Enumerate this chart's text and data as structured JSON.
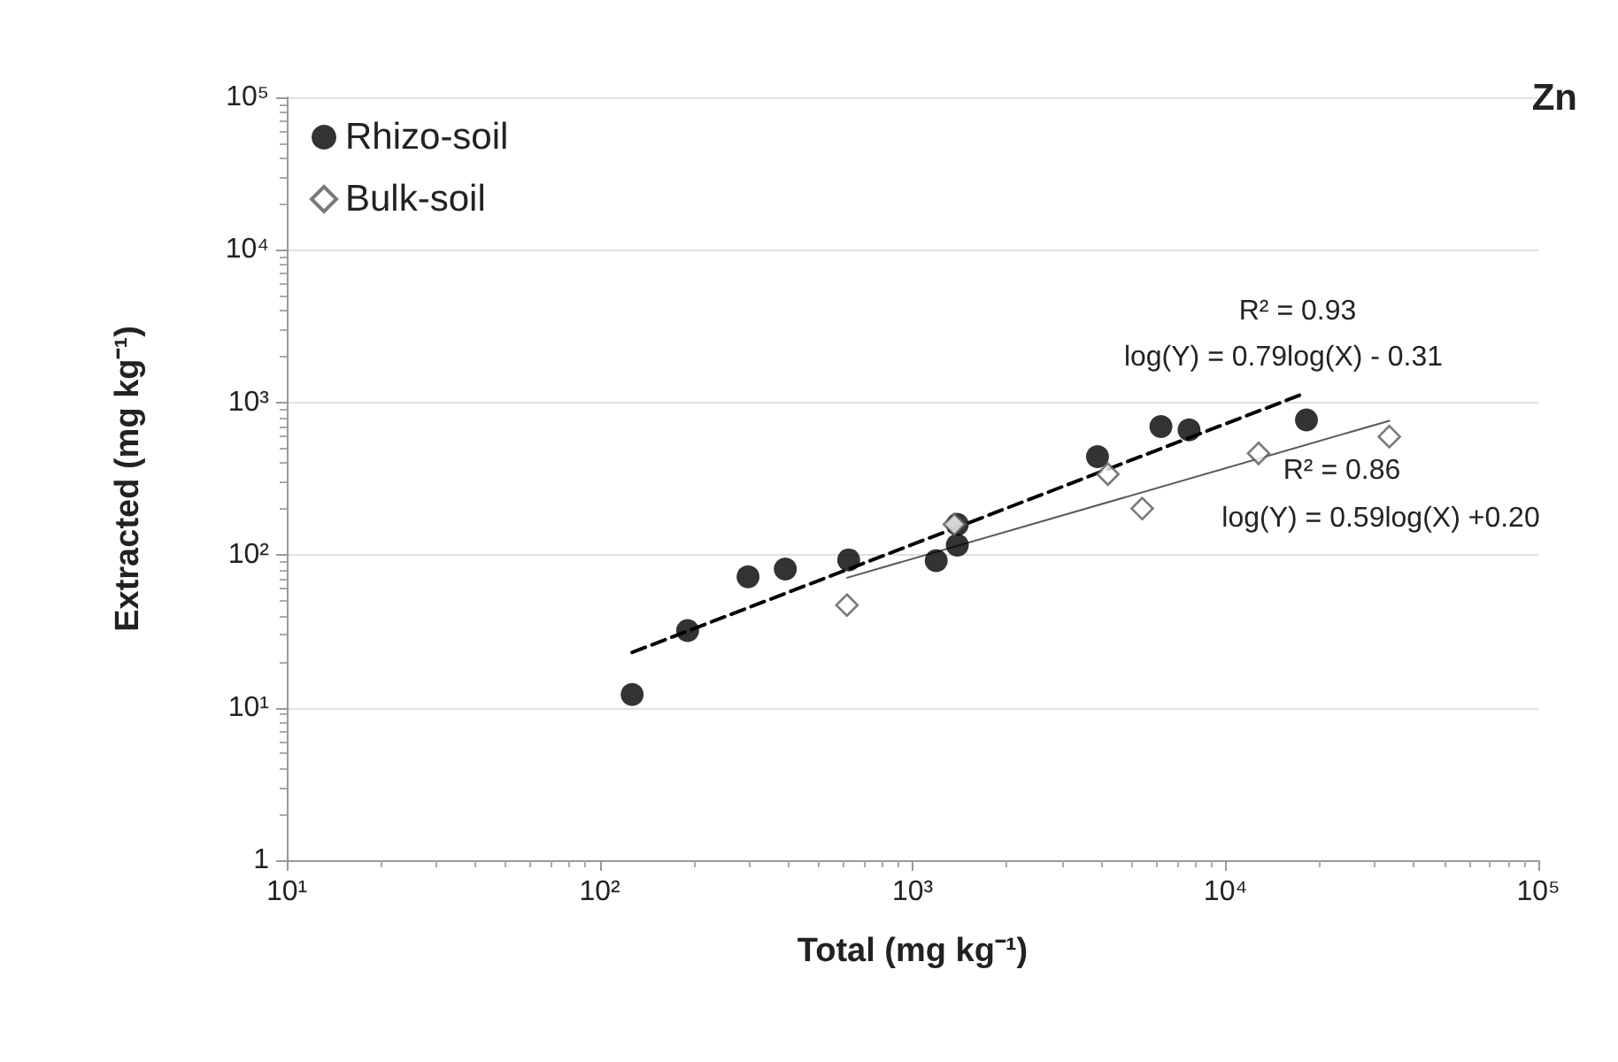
{
  "chart_data": {
    "type": "scatter",
    "title": "Zn",
    "xlabel": "Total (mg kg⁻¹)",
    "ylabel": "Extracted (mg kg⁻¹)",
    "log": "xy",
    "grid": "y",
    "legend": "top left",
    "xlim": [
      10,
      100000
    ],
    "ylim": [
      1,
      100000
    ],
    "xticks": [
      {
        "value": 10,
        "label": "10¹"
      },
      {
        "value": 100,
        "label": "10²"
      },
      {
        "value": 1000,
        "label": "10³"
      },
      {
        "value": 10000,
        "label": "10⁴"
      },
      {
        "value": 100000,
        "label": "10⁵"
      }
    ],
    "yticks": [
      1,
      {
        "value": 10,
        "label": "10¹"
      },
      {
        "value": 100,
        "label": "10²"
      },
      {
        "value": 1000,
        "label": "10³"
      },
      {
        "value": 10000,
        "label": "10⁴"
      },
      {
        "value": 100000,
        "label": "10⁵"
      }
    ],
    "series": [
      {
        "name": "Rhizo-soil",
        "color": "#000000",
        "marker": "circle",
        "x": [
          127,
          191,
          298,
          392,
          625,
          1190,
          1390,
          1390,
          3900,
          6220,
          7650,
          18150
        ],
        "values": [
          12.2,
          32,
          72,
          81,
          93,
          92,
          116,
          159,
          441,
          695,
          661,
          768
        ]
      },
      {
        "name": "Bulk-soil",
        "color": "#595959",
        "marker": "diamond",
        "x": [
          617,
          1360,
          4210,
          5420,
          12760,
          33400
        ],
        "values": [
          47,
          159,
          339,
          202,
          464,
          597
        ]
      },
      {
        "type": "line",
        "color": "#000000",
        "line_style": "dashed",
        "marker": "none",
        "x": [
          127,
          17900
        ],
        "values": [
          23,
          1148
        ]
      },
      {
        "type": "line",
        "color": "#595959",
        "line_style": "solid",
        "marker": "none",
        "x": [
          617,
          33400
        ],
        "values": [
          71,
          759
        ]
      }
    ],
    "annotations": [
      "R² = 0.93",
      "log(Y) = 0.79log(X) - 0.31",
      "R² = 0.86",
      "log(Y) = 0.59log(X) +0.20"
    ]
  }
}
